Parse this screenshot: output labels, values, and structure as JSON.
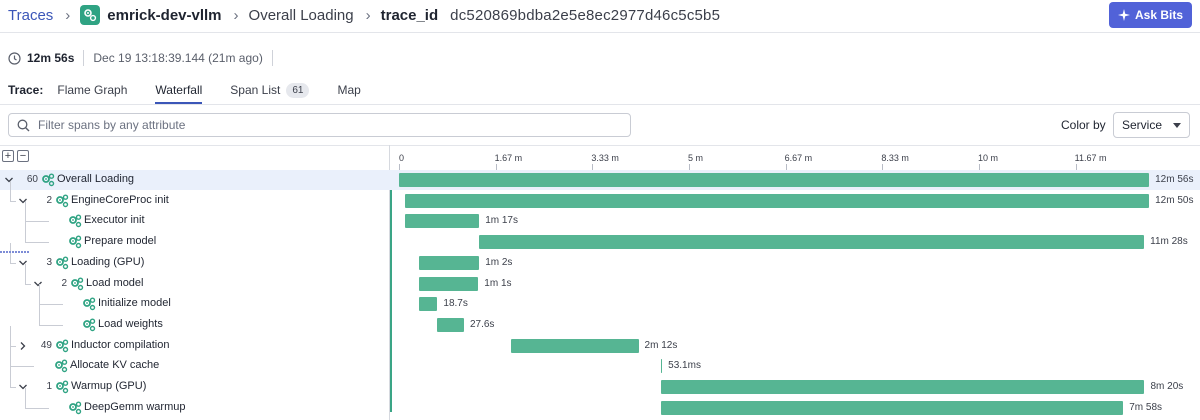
{
  "breadcrumb": {
    "root": "Traces",
    "service": "emrick-dev-vllm",
    "operation": "Overall Loading",
    "key": "trace_id",
    "trace_id": "dc520869bdba2e5e8ec2977d46c5c5b5"
  },
  "ask_button": "Ask Bits",
  "meta": {
    "duration": "12m 56s",
    "started": "Dec 19 13:18:39.144 (21m ago)"
  },
  "tabs": {
    "prefix": "Trace:",
    "flame": "Flame Graph",
    "waterfall": "Waterfall",
    "span_list": "Span List",
    "span_count": "61",
    "map": "Map",
    "active": "Waterfall"
  },
  "filter": {
    "placeholder": "Filter spans by any attribute",
    "value": ""
  },
  "color_by": {
    "label": "Color by",
    "value": "Service"
  },
  "ruler": {
    "labels": [
      "0",
      "1.67 m",
      "3.33 m",
      "5 m",
      "6.67 m",
      "8.33 m",
      "10 m",
      "11.67 m"
    ],
    "max_minutes": 12.933
  },
  "colors": {
    "accent": "#3b56b8",
    "bar": "#56b593",
    "service_icon": "#2fa383",
    "button": "#5162d8"
  },
  "spans": [
    {
      "name": "Overall Loading",
      "count": "60",
      "depth": 0,
      "expander": "down",
      "start_min": 0,
      "duration_min": 12.933,
      "duration": "12m 56s",
      "selected": true
    },
    {
      "name": "EngineCoreProc init",
      "count": "2",
      "depth": 1,
      "expander": "down",
      "start_min": 0.1,
      "duration_min": 12.833,
      "duration": "12m 50s"
    },
    {
      "name": "Executor init",
      "count": "",
      "depth": 2,
      "expander": "",
      "start_min": 0.1,
      "duration_min": 1.283,
      "duration": "1m 17s"
    },
    {
      "name": "Prepare model",
      "count": "",
      "depth": 2,
      "expander": "",
      "start_min": 1.38,
      "duration_min": 11.467,
      "duration": "11m 28s"
    },
    {
      "name": "Loading (GPU)",
      "count": "3",
      "depth": 1,
      "expander": "down",
      "start_min": 0.35,
      "duration_min": 1.033,
      "duration": "1m 2s"
    },
    {
      "name": "Load model",
      "count": "2",
      "depth": 2,
      "expander": "down",
      "start_min": 0.35,
      "duration_min": 1.017,
      "duration": "1m 1s"
    },
    {
      "name": "Initialize model",
      "count": "",
      "depth": 3,
      "expander": "",
      "start_min": 0.35,
      "duration_min": 0.312,
      "duration": "18.7s"
    },
    {
      "name": "Load weights",
      "count": "",
      "depth": 3,
      "expander": "",
      "start_min": 0.66,
      "duration_min": 0.46,
      "duration": "27.6s"
    },
    {
      "name": "Inductor compilation",
      "count": "49",
      "depth": 1,
      "expander": "right",
      "start_min": 1.93,
      "duration_min": 2.2,
      "duration": "2m 12s"
    },
    {
      "name": "Allocate KV cache",
      "count": "",
      "depth": 1,
      "expander": "",
      "start_min": 4.52,
      "duration_min": 0.0009,
      "duration": "53.1ms"
    },
    {
      "name": "Warmup (GPU)",
      "count": "1",
      "depth": 1,
      "expander": "down",
      "start_min": 4.52,
      "duration_min": 8.333,
      "duration": "8m 20s"
    },
    {
      "name": "DeepGemm warmup",
      "count": "",
      "depth": 2,
      "expander": "",
      "start_min": 4.52,
      "duration_min": 7.967,
      "duration": "7m 58s"
    }
  ]
}
